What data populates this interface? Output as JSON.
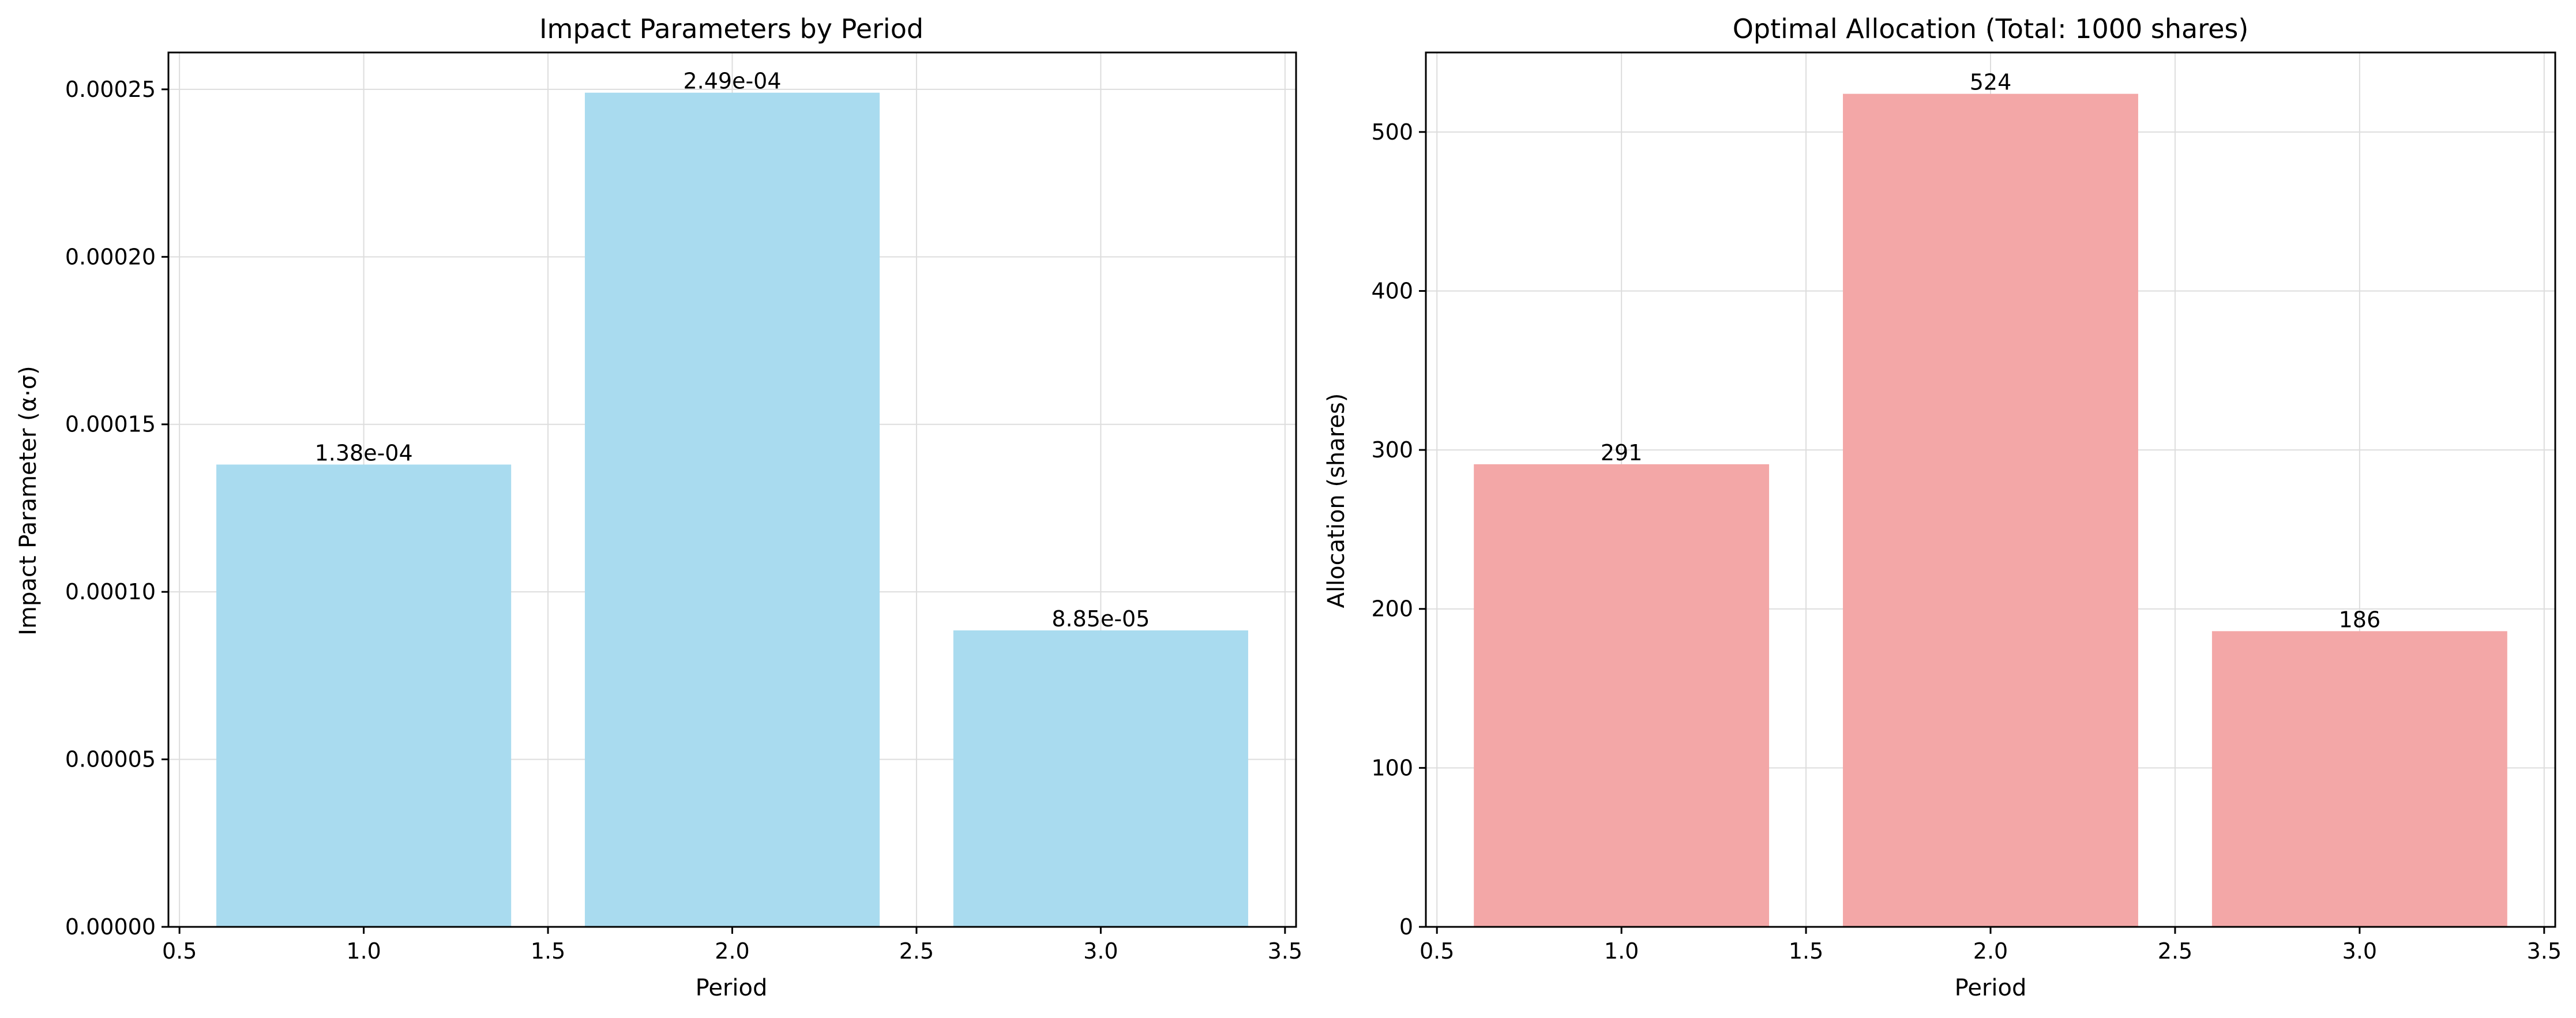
{
  "colors": {
    "left_bar": "#a9dbef",
    "right_bar": "#f3a7a7",
    "grid": "#dddddd",
    "axis": "#000000"
  },
  "chart_data": [
    {
      "type": "bar",
      "title": "Impact Parameters by Period",
      "xlabel": "Period",
      "ylabel": "Impact Parameter (α·σ)",
      "x": [
        1.0,
        2.0,
        3.0
      ],
      "values": [
        0.000138,
        0.000249,
        8.85e-05
      ],
      "value_labels": [
        "1.38e-04",
        "2.49e-04",
        "8.85e-05"
      ],
      "bar_width": 0.8,
      "xlim": [
        0.47,
        3.53
      ],
      "ylim": [
        0,
        0.000261
      ],
      "xticks": [
        0.5,
        1.0,
        1.5,
        2.0,
        2.5,
        3.0,
        3.5
      ],
      "xtick_labels": [
        "0.5",
        "1.0",
        "1.5",
        "2.0",
        "2.5",
        "3.0",
        "3.5"
      ],
      "yticks": [
        0,
        5e-05,
        0.0001,
        0.00015,
        0.0002,
        0.00025
      ],
      "ytick_labels": [
        "0.00000",
        "0.00005",
        "0.00010",
        "0.00015",
        "0.00020",
        "0.00025"
      ],
      "grid": true,
      "color": "#a9dbef"
    },
    {
      "type": "bar",
      "title": "Optimal Allocation (Total: 1000 shares)",
      "xlabel": "Period",
      "ylabel": "Allocation (shares)",
      "x": [
        1.0,
        2.0,
        3.0
      ],
      "values": [
        291,
        524,
        186
      ],
      "value_labels": [
        "291",
        "524",
        "186"
      ],
      "bar_width": 0.8,
      "xlim": [
        0.47,
        3.53
      ],
      "ylim": [
        0,
        550
      ],
      "xticks": [
        0.5,
        1.0,
        1.5,
        2.0,
        2.5,
        3.0,
        3.5
      ],
      "xtick_labels": [
        "0.5",
        "1.0",
        "1.5",
        "2.0",
        "2.5",
        "3.0",
        "3.5"
      ],
      "yticks": [
        0,
        100,
        200,
        300,
        400,
        500
      ],
      "ytick_labels": [
        "0",
        "100",
        "200",
        "300",
        "400",
        "500"
      ],
      "grid": true,
      "color": "#f3a7a7"
    }
  ]
}
